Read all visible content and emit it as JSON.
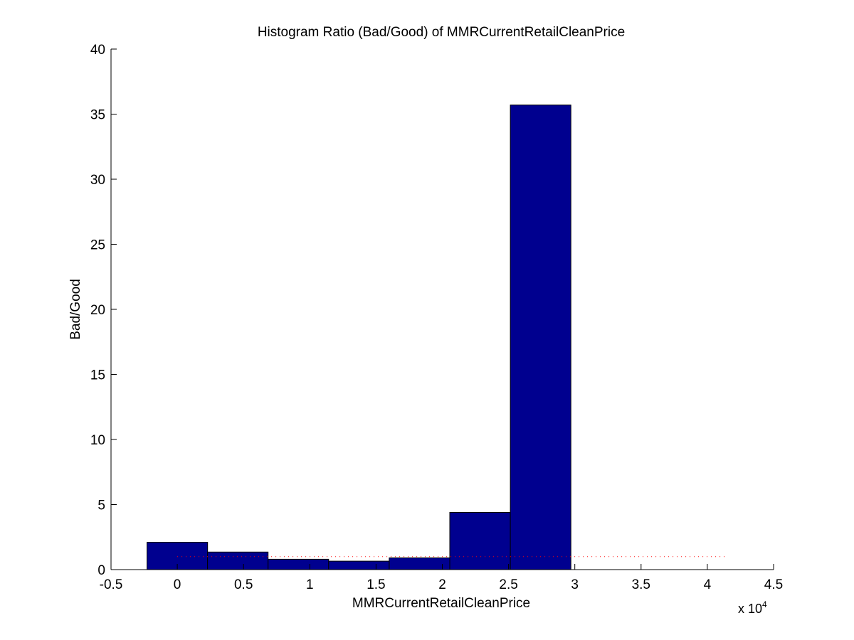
{
  "chart_data": {
    "type": "bar",
    "title": "Histogram Ratio (Bad/Good) of MMRCurrentRetailCleanPrice",
    "xlabel": "MMRCurrentRetailCleanPrice",
    "ylabel": "Bad/Good",
    "x_multiplier_base": "x 10",
    "x_multiplier_exp": "4",
    "xlim": [
      -0.5,
      4.5
    ],
    "ylim": [
      0,
      40
    ],
    "xticks": [
      -0.5,
      0,
      0.5,
      1,
      1.5,
      2,
      2.5,
      3,
      3.5,
      4,
      4.5
    ],
    "xtick_labels": [
      "-0.5",
      "0",
      "0.5",
      "1",
      "1.5",
      "2",
      "2.5",
      "3",
      "3.5",
      "4",
      "4.5"
    ],
    "yticks": [
      0,
      5,
      10,
      15,
      20,
      25,
      30,
      35,
      40
    ],
    "ytick_labels": [
      "0",
      "5",
      "10",
      "15",
      "20",
      "25",
      "30",
      "35",
      "40"
    ],
    "bins": [
      {
        "center": 0.0,
        "width": 0.457,
        "value": 2.1
      },
      {
        "center": 0.457,
        "width": 0.457,
        "value": 1.35
      },
      {
        "center": 0.914,
        "width": 0.457,
        "value": 0.8
      },
      {
        "center": 1.371,
        "width": 0.457,
        "value": 0.65
      },
      {
        "center": 1.828,
        "width": 0.457,
        "value": 0.9
      },
      {
        "center": 2.285,
        "width": 0.457,
        "value": 4.4
      },
      {
        "center": 2.742,
        "width": 0.457,
        "value": 35.7
      }
    ],
    "reference_line": {
      "y": 1,
      "x_start": 0,
      "x_end": 4.13,
      "style": "dotted",
      "color": "#ff0000"
    },
    "bar_color": "#00008f",
    "grid": false,
    "legend": "none"
  }
}
